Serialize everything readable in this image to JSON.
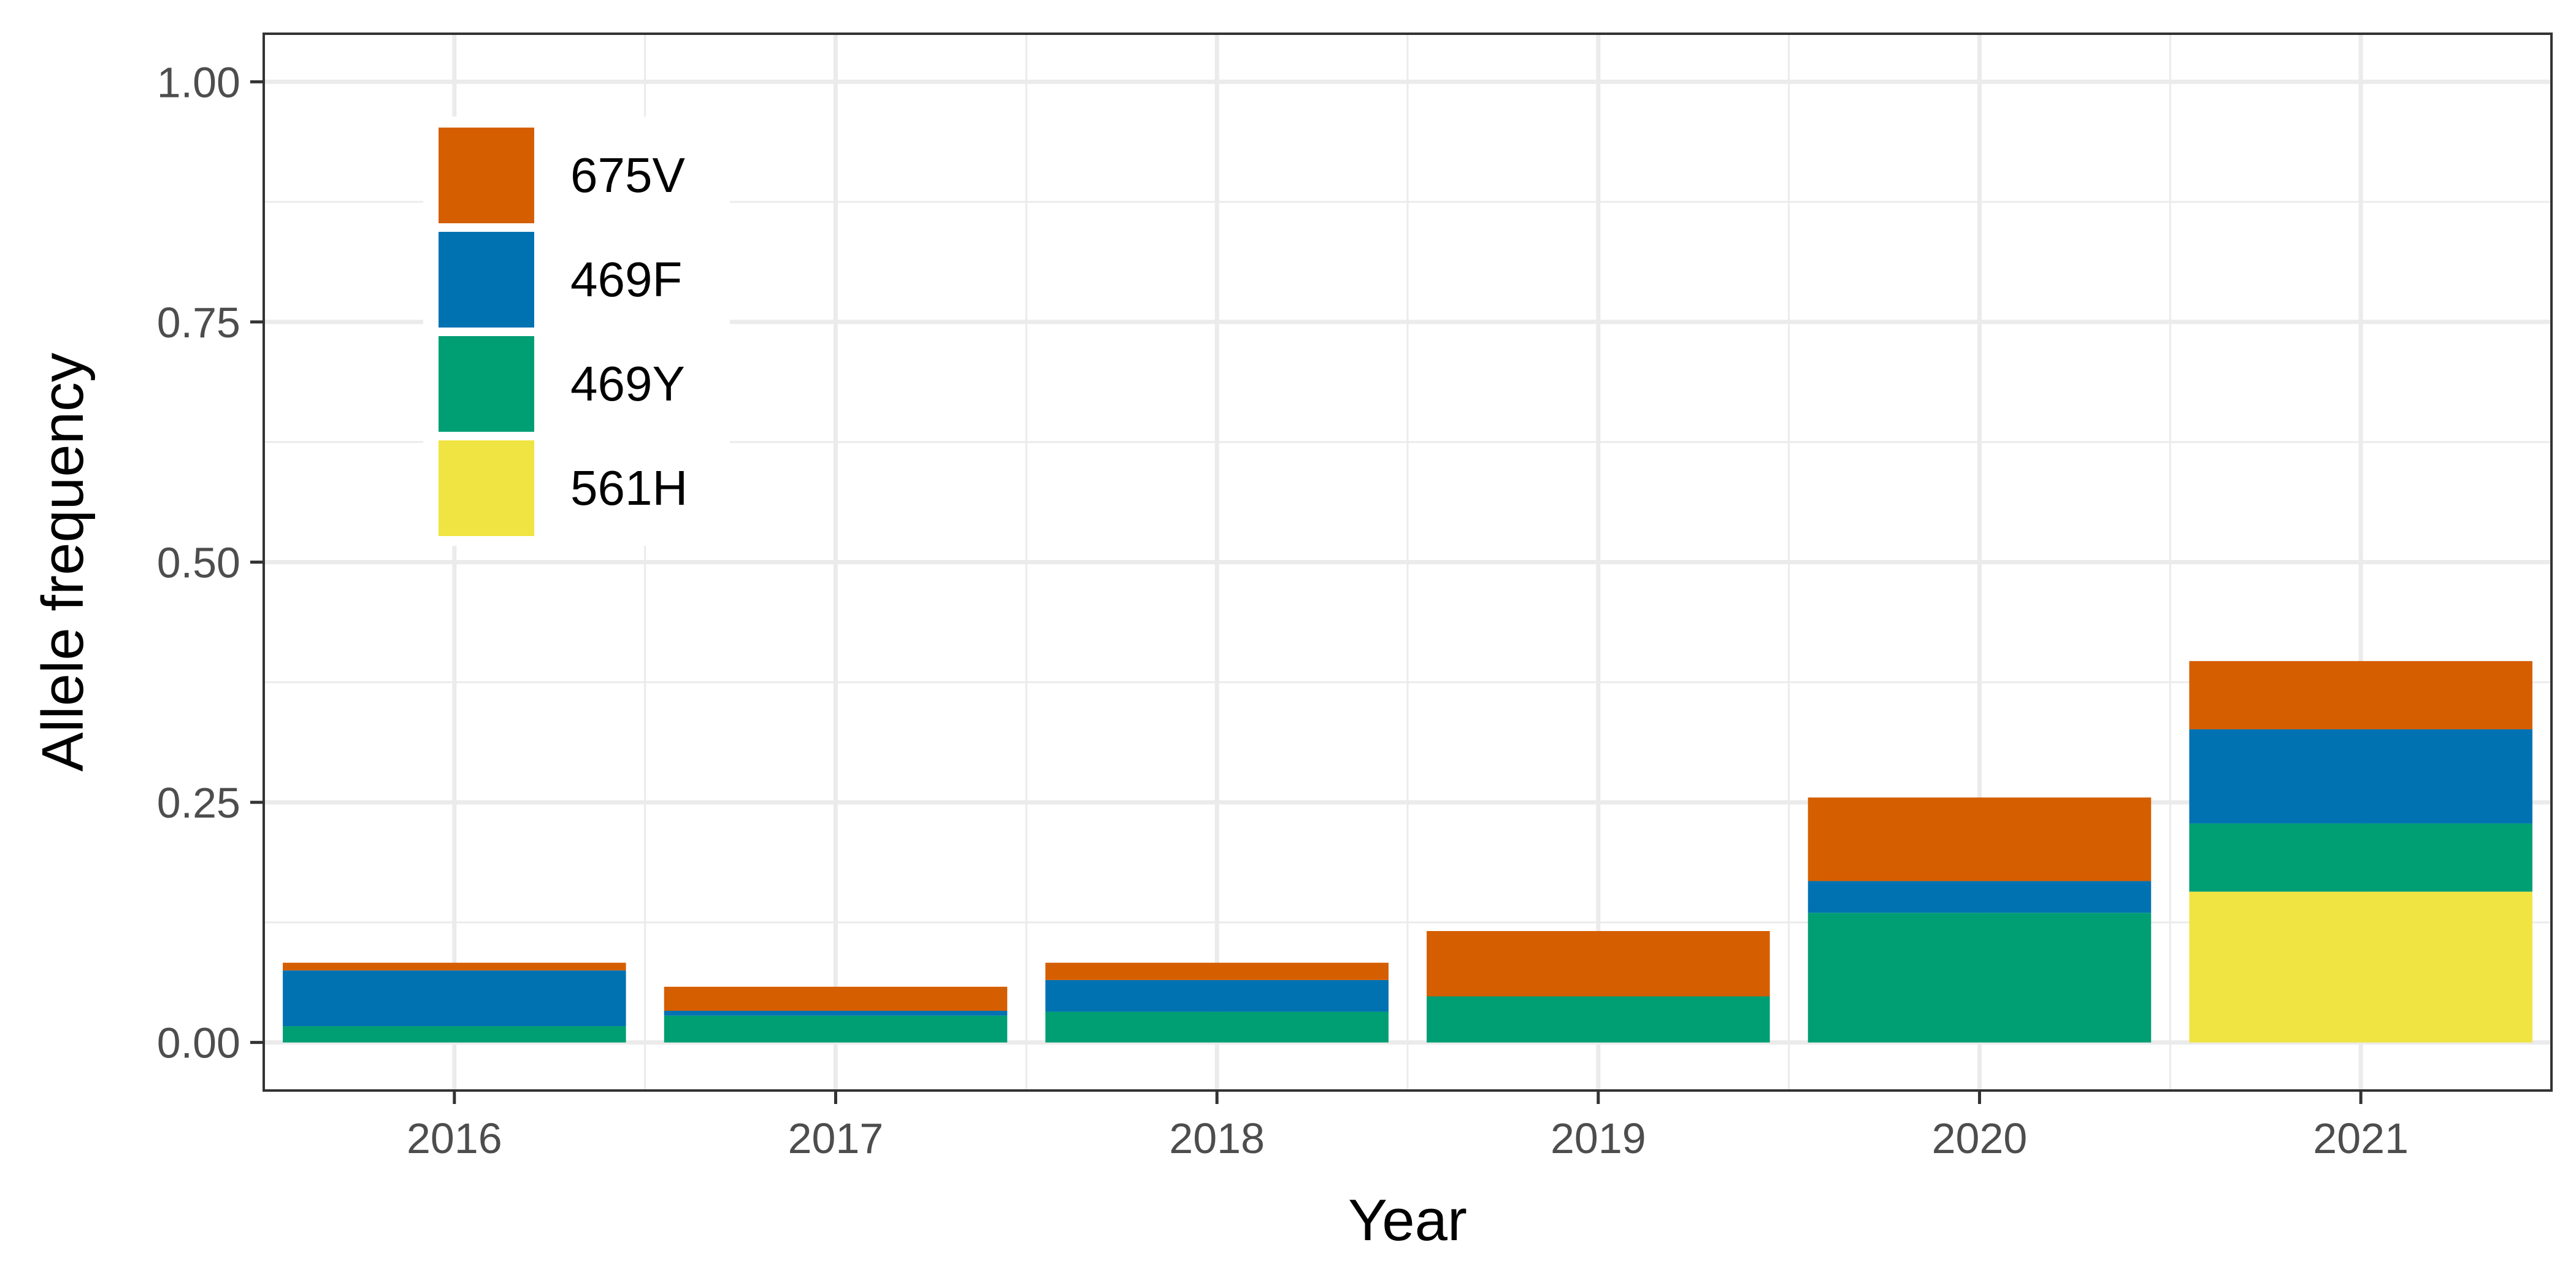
{
  "chart_data": {
    "type": "bar",
    "stacked": true,
    "categories": [
      "2016",
      "2017",
      "2018",
      "2019",
      "2020",
      "2021"
    ],
    "series": [
      {
        "name": "561H",
        "color": "#F0E442",
        "values": [
          0,
          0,
          0,
          0,
          0,
          0.157
        ]
      },
      {
        "name": "469Y",
        "color": "#009E73",
        "values": [
          0.017,
          0.028,
          0.032,
          0.048,
          0.135,
          0.071
        ]
      },
      {
        "name": "469F",
        "color": "#0072B2",
        "values": [
          0.058,
          0.005,
          0.033,
          0,
          0.033,
          0.098
        ]
      },
      {
        "name": "675V",
        "color": "#D55E00",
        "values": [
          0.008,
          0.025,
          0.018,
          0.068,
          0.087,
          0.071
        ]
      }
    ],
    "legend_order": [
      "675V",
      "469F",
      "469Y",
      "561H"
    ],
    "legend_position": "top-left",
    "xlabel": "Year",
    "ylabel": "Allele frequency",
    "ylim": [
      -0.05,
      1.05
    ],
    "yticks": [
      0,
      0.25,
      0.5,
      0.75,
      1.0
    ],
    "ytick_labels": [
      "0.00",
      "0.25",
      "0.50",
      "0.75",
      "1.00"
    ],
    "grid": true,
    "panel_border": true
  }
}
